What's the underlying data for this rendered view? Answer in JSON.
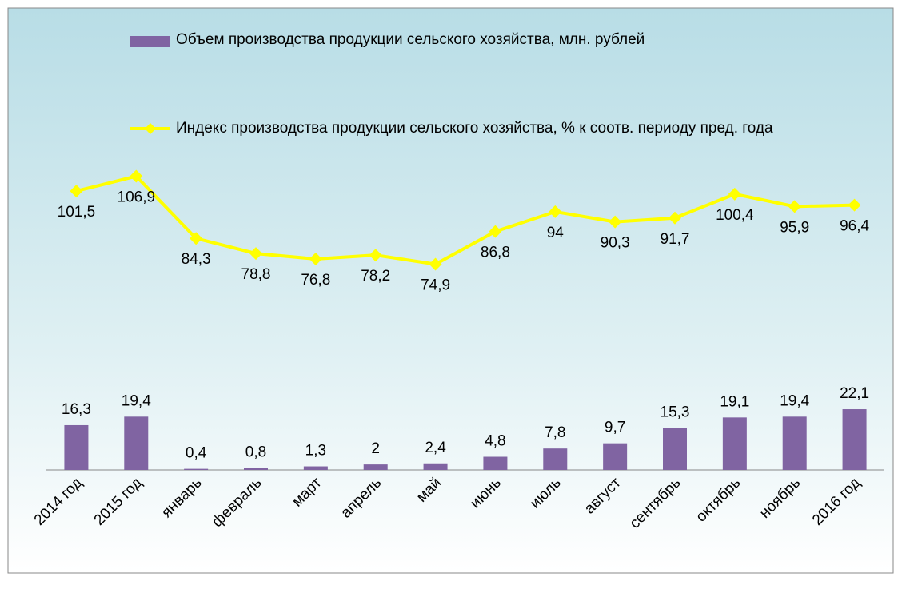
{
  "chart_data": {
    "type": "bar_line",
    "categories": [
      "2014 год",
      "2015 год",
      "январь",
      "февраль",
      "март",
      "апрель",
      "май",
      "июнь",
      "июль",
      "август",
      "сентябрь",
      "октябрь",
      "ноябрь",
      "2016 год"
    ],
    "series": [
      {
        "name": "Объем производства продукции сельского хозяйства, млн. рублей",
        "type": "bar",
        "color": "#8064a2",
        "values": [
          16.3,
          19.4,
          0.4,
          0.8,
          1.3,
          2,
          2.4,
          4.8,
          7.8,
          9.7,
          15.3,
          19.1,
          19.4,
          22.1
        ],
        "value_labels": [
          "16,3",
          "19,4",
          "0,4",
          "0,8",
          "1,3",
          "2",
          "2,4",
          "4,8",
          "7,8",
          "9,7",
          "15,3",
          "19,1",
          "19,4",
          "22,1"
        ]
      },
      {
        "name": "Индекс производства продукции сельского хозяйства, % к соотв. периоду пред. года",
        "type": "line",
        "color": "#ffff00",
        "values": [
          101.5,
          106.9,
          84.3,
          78.8,
          76.8,
          78.2,
          74.9,
          86.8,
          94,
          90.3,
          91.7,
          100.4,
          95.9,
          96.4
        ],
        "value_labels": [
          "101,5",
          "106,9",
          "84,3",
          "78,8",
          "76,8",
          "78,2",
          "74,9",
          "86,8",
          "94",
          "90,3",
          "91,7",
          "100,4",
          "95,9",
          "96,4"
        ]
      }
    ],
    "ylim": [
      0,
      160
    ]
  }
}
